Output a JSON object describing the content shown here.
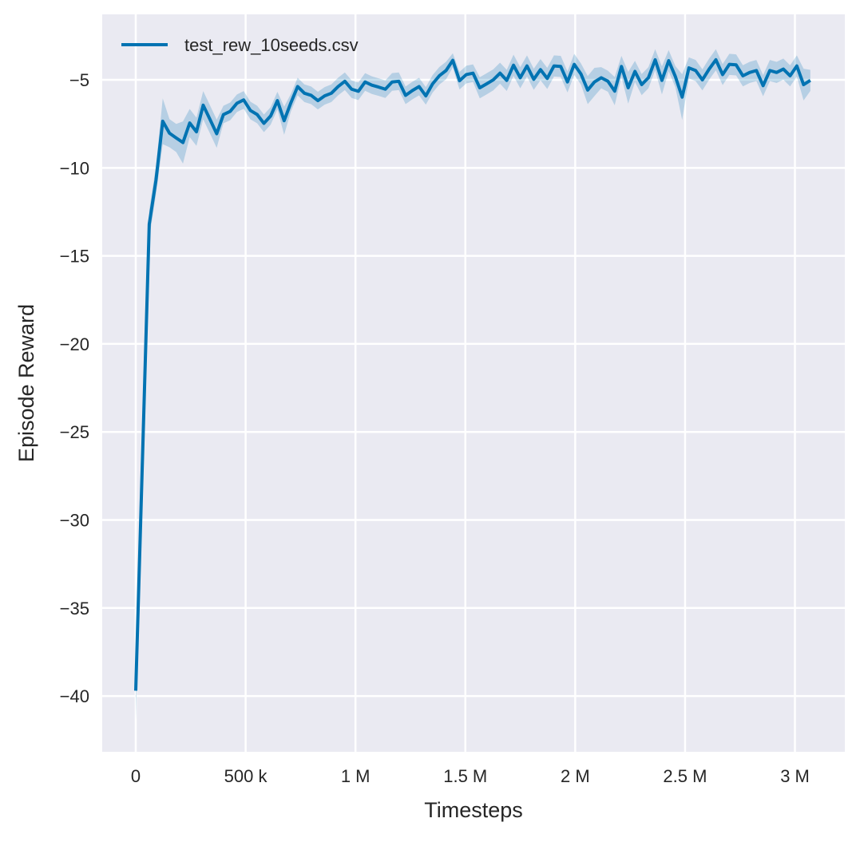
{
  "chart_data": {
    "type": "line",
    "xlabel": "Timesteps",
    "ylabel": "Episode Reward",
    "xlim": [
      -152600,
      3227000
    ],
    "ylim": [
      -43.17,
      -1.28
    ],
    "grid": true,
    "legend_placement": "top-left",
    "background_color": "#eaeaf2",
    "grid_color": "#ffffff",
    "x_ticks": [
      0,
      500000,
      1000000,
      1500000,
      2000000,
      2500000,
      3000000
    ],
    "x_tick_labels": [
      "0",
      "500 k",
      "1 M",
      "1.5 M",
      "2 M",
      "2.5 M",
      "3 M"
    ],
    "y_ticks": [
      -5,
      -10,
      -15,
      -20,
      -25,
      -30,
      -35,
      -40
    ],
    "y_tick_labels": [
      "−5",
      "−10",
      "−15",
      "−20",
      "−25",
      "−30",
      "−35",
      "−40"
    ],
    "x_step": 30700,
    "series": [
      {
        "name": "test_rew_10seeds.csv",
        "color": "#0173b2",
        "values": [
          -39.7,
          -26.5,
          -13.2,
          -10.7,
          -7.35,
          -8.03,
          -8.3,
          -8.56,
          -7.45,
          -7.95,
          -6.44,
          -7.24,
          -8.06,
          -6.97,
          -6.79,
          -6.33,
          -6.14,
          -6.74,
          -6.97,
          -7.47,
          -7.05,
          -6.18,
          -7.32,
          -6.3,
          -5.38,
          -5.76,
          -5.88,
          -6.18,
          -5.91,
          -5.76,
          -5.38,
          -5.08,
          -5.53,
          -5.65,
          -5.12,
          -5.3,
          -5.41,
          -5.53,
          -5.12,
          -5.08,
          -5.88,
          -5.61,
          -5.38,
          -5.91,
          -5.23,
          -4.77,
          -4.47,
          -3.89,
          -5.05,
          -4.7,
          -4.62,
          -5.45,
          -5.23,
          -5.0,
          -4.62,
          -5.03,
          -4.17,
          -4.88,
          -4.21,
          -4.97,
          -4.42,
          -4.92,
          -4.21,
          -4.24,
          -5.12,
          -4.12,
          -4.67,
          -5.58,
          -5.12,
          -4.88,
          -5.08,
          -5.64,
          -4.24,
          -5.45,
          -4.52,
          -5.27,
          -4.88,
          -3.86,
          -5.03,
          -3.91,
          -4.82,
          -5.98,
          -4.32,
          -4.47,
          -5.0,
          -4.39,
          -3.86,
          -4.7,
          -4.12,
          -4.15,
          -4.77,
          -4.58,
          -4.47,
          -5.33,
          -4.47,
          -4.58,
          -4.39,
          -4.77,
          -4.21,
          -5.27,
          -5.03
        ],
        "ci_halfwidth": [
          1.7,
          1.0,
          0.8,
          0.8,
          1.3,
          0.8,
          0.8,
          1.2,
          0.8,
          0.8,
          0.8,
          0.8,
          0.8,
          0.5,
          0.5,
          0.5,
          0.5,
          0.5,
          0.5,
          0.5,
          0.5,
          0.5,
          0.8,
          0.5,
          0.5,
          0.5,
          0.5,
          0.5,
          0.5,
          0.5,
          0.5,
          0.5,
          0.5,
          0.5,
          0.5,
          0.5,
          0.5,
          0.5,
          0.5,
          0.5,
          0.5,
          0.5,
          0.5,
          0.5,
          0.5,
          0.5,
          0.5,
          0.4,
          0.5,
          0.5,
          0.5,
          0.6,
          0.6,
          0.6,
          0.6,
          0.6,
          0.6,
          0.6,
          0.6,
          0.6,
          0.6,
          0.6,
          0.6,
          0.6,
          0.6,
          0.6,
          0.6,
          0.8,
          0.8,
          0.6,
          0.6,
          0.8,
          0.6,
          0.9,
          0.6,
          0.6,
          0.6,
          0.6,
          0.8,
          0.6,
          0.6,
          1.3,
          0.6,
          0.6,
          0.6,
          0.6,
          0.6,
          0.6,
          0.6,
          0.6,
          0.6,
          0.6,
          0.6,
          0.6,
          0.6,
          0.6,
          0.6,
          0.6,
          0.6,
          0.9,
          0.6
        ]
      }
    ]
  }
}
